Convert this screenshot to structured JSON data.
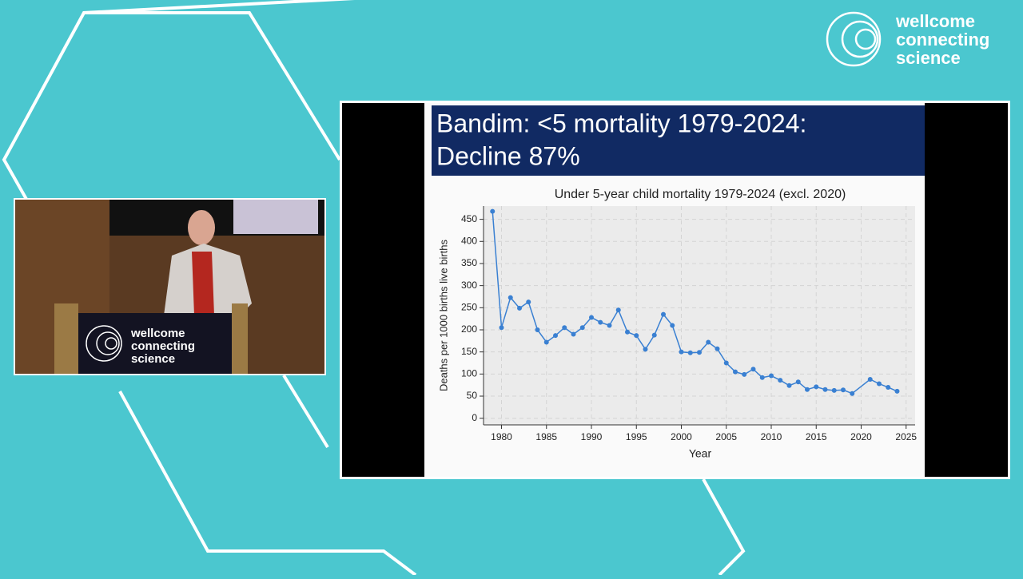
{
  "logo": {
    "lines": [
      "wellcome",
      "connecting",
      "science"
    ]
  },
  "podium_logo": {
    "lines": [
      "wellcome",
      "connecting",
      "science"
    ]
  },
  "slide": {
    "title_lines": [
      "Bandim: <5 mortality 1979-2024:",
      "Decline 87%"
    ]
  },
  "chart_data": {
    "type": "line",
    "title": "Under 5-year child mortality 1979-2024 (excl. 2020)",
    "x_label": "Year",
    "y_label": "Deaths per 1000 births live births",
    "x": [
      1979,
      1980,
      1981,
      1982,
      1983,
      1984,
      1985,
      1986,
      1987,
      1988,
      1989,
      1990,
      1991,
      1992,
      1993,
      1994,
      1995,
      1996,
      1997,
      1998,
      1999,
      2000,
      2001,
      2002,
      2003,
      2004,
      2005,
      2006,
      2007,
      2008,
      2009,
      2010,
      2011,
      2012,
      2013,
      2014,
      2015,
      2016,
      2017,
      2018,
      2019,
      2021,
      2022,
      2023,
      2024
    ],
    "series": [
      {
        "name": "Under 5 mortality",
        "color": "#3a80d2",
        "values": [
          468,
          205,
          273,
          249,
          263,
          200,
          172,
          187,
          205,
          190,
          205,
          228,
          217,
          210,
          245,
          195,
          187,
          156,
          188,
          235,
          210,
          150,
          148,
          149,
          172,
          157,
          125,
          105,
          99,
          111,
          92,
          96,
          86,
          74,
          82,
          65,
          71,
          65,
          63,
          64,
          56,
          88,
          78,
          70,
          61
        ]
      }
    ],
    "xlim": [
      1978,
      2026
    ],
    "ylim": [
      -15,
      480
    ],
    "xticks": [
      1980,
      1985,
      1990,
      1995,
      2000,
      2005,
      2010,
      2015,
      2020,
      2025
    ],
    "yticks": [
      0,
      50,
      100,
      150,
      200,
      250,
      300,
      350,
      400,
      450
    ],
    "grid": true
  }
}
